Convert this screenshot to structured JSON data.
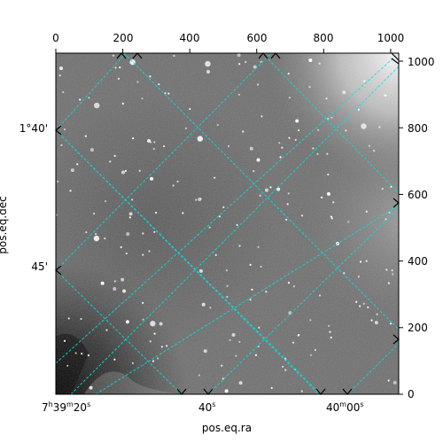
{
  "chart_data": {
    "type": "image",
    "xlabel": "pos.eq.ra",
    "ylabel": "pos.eq.dec",
    "pixel_axes": {
      "x_ticks": [
        "0",
        "200",
        "400",
        "600",
        "800",
        "1000"
      ],
      "y_ticks": [
        "0",
        "200",
        "400",
        "600",
        "800",
        "1000"
      ],
      "xlim": [
        0,
        1024
      ],
      "ylim": [
        0,
        1024
      ]
    },
    "ra_tick_labels": [
      {
        "h": "7",
        "m": "39",
        "s": "20"
      },
      {
        "s": "40"
      },
      {
        "m": "40",
        "s": "00"
      }
    ],
    "dec_tick_labels": [
      "1°40'",
      "45'"
    ],
    "grid": true,
    "grid_color": "#00e5e5",
    "colormap": "gray"
  }
}
